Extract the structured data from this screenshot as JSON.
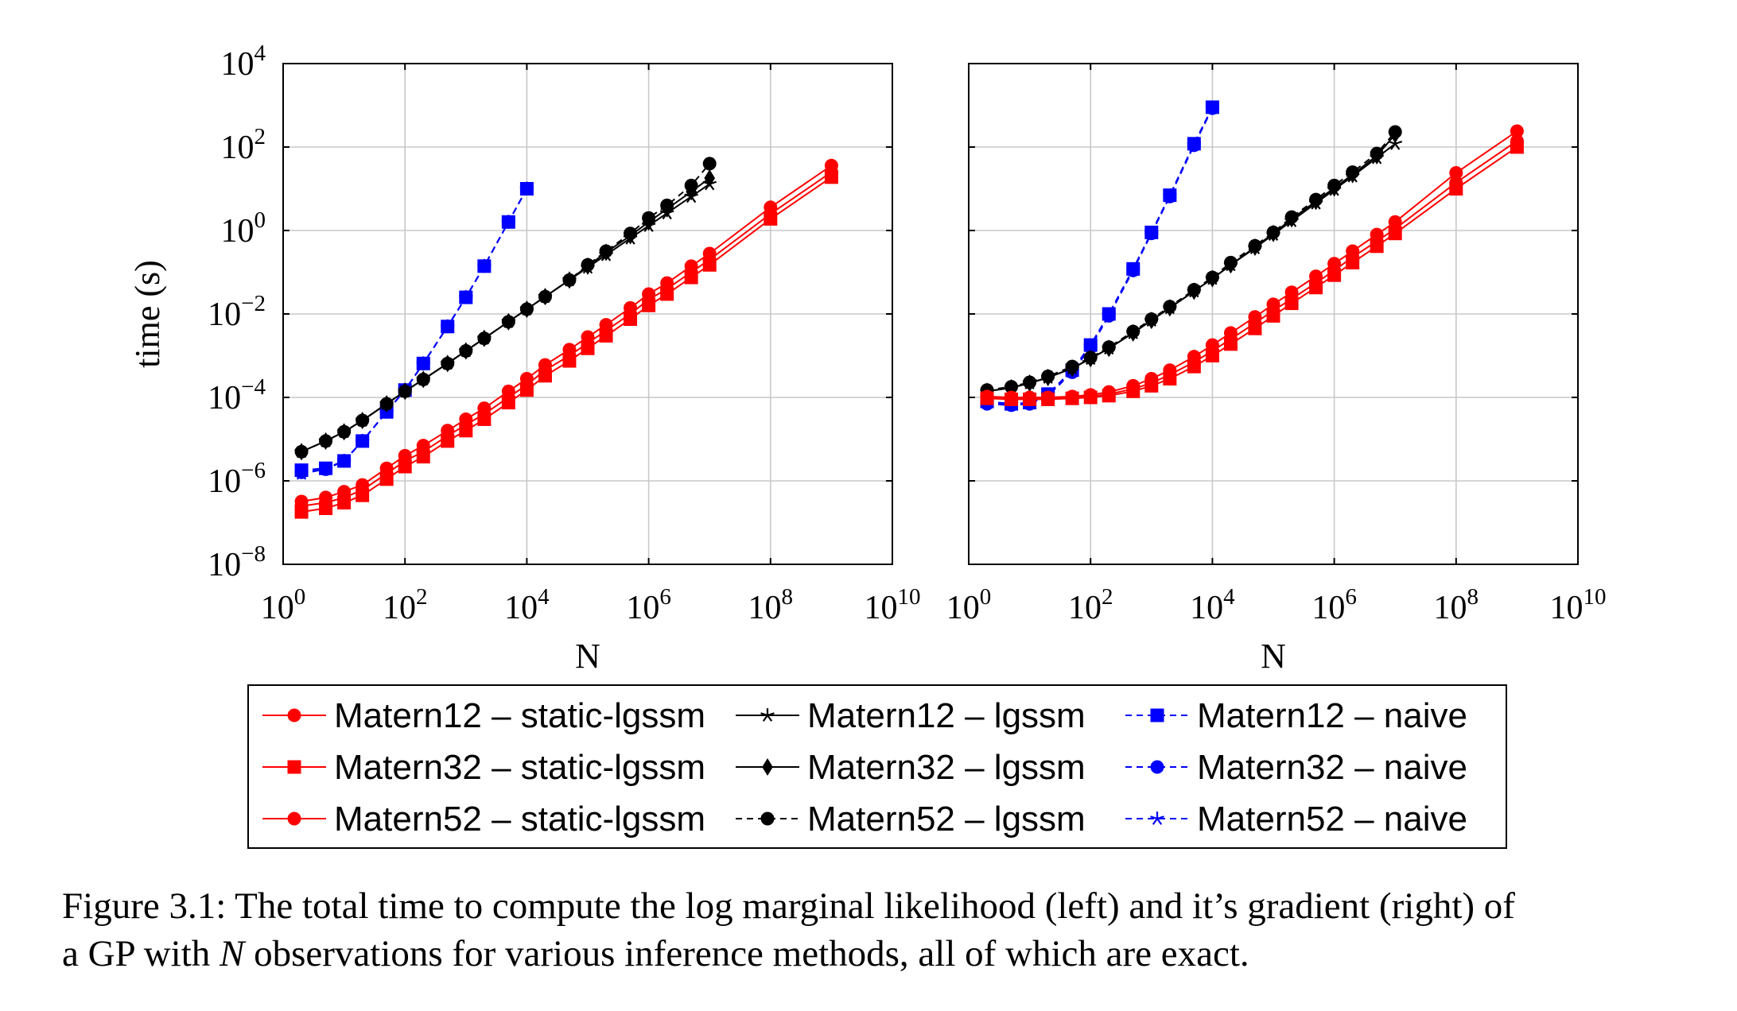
{
  "chart_data": [
    {
      "type": "scatter",
      "panel": "left",
      "xlabel": "N",
      "ylabel": "time (s)",
      "xscale": "log",
      "yscale": "log",
      "xlim": [
        1,
        10000000000
      ],
      "ylim": [
        1e-08,
        10000
      ],
      "xticks": [
        "10^0",
        "10^2",
        "10^4",
        "10^6",
        "10^8",
        "10^10"
      ],
      "yticks": [
        "10^-8",
        "10^-6",
        "10^-4",
        "10^-2",
        "10^0",
        "10^2",
        "10^4"
      ],
      "grid": true,
      "series": [
        {
          "name": "Matern12 – static-lgssm",
          "x": [
            2,
            5,
            10,
            20,
            50,
            100,
            200,
            500,
            1000,
            2000,
            5000,
            10000,
            20000,
            50000,
            100000,
            200000,
            500000,
            1000000,
            2000000,
            5000000,
            10000000,
            100000000,
            1000000000
          ],
          "y": [
            2.5e-07,
            3e-07,
            4e-07,
            6e-07,
            1.5e-06,
            3e-06,
            5e-06,
            1.2e-05,
            2.2e-05,
            4e-05,
            0.0001,
            0.0002,
            0.00045,
            0.001,
            0.002,
            0.004,
            0.01,
            0.022,
            0.04,
            0.1,
            0.2,
            2.5,
            25
          ]
        },
        {
          "name": "Matern32 – static-lgssm",
          "x": [
            2,
            5,
            10,
            20,
            50,
            100,
            200,
            500,
            1000,
            2000,
            5000,
            10000,
            20000,
            50000,
            100000,
            200000,
            500000,
            1000000,
            2000000,
            5000000,
            10000000,
            100000000,
            1000000000
          ],
          "y": [
            1.8e-07,
            2.2e-07,
            3e-07,
            4.5e-07,
            1.1e-06,
            2.2e-06,
            3.8e-06,
            9e-06,
            1.6e-05,
            3e-05,
            7.5e-05,
            0.00015,
            0.00033,
            0.00075,
            0.0015,
            0.003,
            0.0075,
            0.016,
            0.03,
            0.075,
            0.15,
            1.9,
            19
          ]
        },
        {
          "name": "Matern52 – static-lgssm",
          "x": [
            2,
            5,
            10,
            20,
            50,
            100,
            200,
            500,
            1000,
            2000,
            5000,
            10000,
            20000,
            50000,
            100000,
            200000,
            500000,
            1000000,
            2000000,
            5000000,
            10000000,
            100000000,
            1000000000
          ],
          "y": [
            3.2e-07,
            4e-07,
            5.5e-07,
            8e-07,
            2e-06,
            4e-06,
            7e-06,
            1.6e-05,
            3e-05,
            5.5e-05,
            0.00014,
            0.00028,
            0.0006,
            0.0014,
            0.0028,
            0.0055,
            0.014,
            0.03,
            0.055,
            0.14,
            0.28,
            3.6,
            36
          ]
        },
        {
          "name": "Matern12 – lgssm",
          "x": [
            2,
            5,
            10,
            20,
            50,
            100,
            200,
            500,
            1000,
            2000,
            5000,
            10000,
            20000,
            50000,
            100000,
            200000,
            500000,
            1000000,
            2000000,
            5000000,
            10000000
          ],
          "y": [
            5e-06,
            9e-06,
            1.5e-05,
            2.8e-05,
            7e-05,
            0.00014,
            0.00027,
            0.00065,
            0.0013,
            0.0026,
            0.0065,
            0.013,
            0.026,
            0.065,
            0.13,
            0.26,
            0.65,
            1.3,
            2.6,
            6.5,
            13
          ]
        },
        {
          "name": "Matern32 – lgssm",
          "x": [
            2,
            5,
            10,
            20,
            50,
            100,
            200,
            500,
            1000,
            2000,
            5000,
            10000,
            20000,
            50000,
            100000,
            200000,
            500000,
            1000000,
            2000000,
            5000000,
            10000000
          ],
          "y": [
            5e-06,
            9e-06,
            1.5e-05,
            2.8e-05,
            7e-05,
            0.00014,
            0.00027,
            0.00065,
            0.0013,
            0.0026,
            0.0065,
            0.013,
            0.026,
            0.065,
            0.14,
            0.3,
            0.75,
            1.6,
            3.3,
            8.5,
            18
          ]
        },
        {
          "name": "Matern52 – lgssm",
          "x": [
            2,
            5,
            10,
            20,
            50,
            100,
            200,
            500,
            1000,
            2000,
            5000,
            10000,
            20000,
            50000,
            100000,
            200000,
            500000,
            1000000,
            2000000,
            5000000,
            10000000
          ],
          "y": [
            5e-06,
            9e-06,
            1.5e-05,
            2.8e-05,
            7e-05,
            0.00014,
            0.00027,
            0.00065,
            0.0013,
            0.0026,
            0.0065,
            0.013,
            0.026,
            0.065,
            0.15,
            0.32,
            0.85,
            2,
            4,
            12,
            40
          ]
        },
        {
          "name": "Matern12 – naive",
          "x": [
            2,
            5,
            10,
            20,
            50,
            100,
            200,
            500,
            1000,
            2000,
            5000,
            10000
          ],
          "y": [
            1.8e-06,
            2e-06,
            3e-06,
            9e-06,
            4.5e-05,
            0.00015,
            0.00065,
            0.005,
            0.025,
            0.14,
            1.6,
            10
          ]
        },
        {
          "name": "Matern32 – naive",
          "x": [
            2,
            5,
            10,
            20,
            50,
            100,
            200,
            500,
            1000,
            2000,
            5000,
            10000
          ],
          "y": [
            1.6e-06,
            1.9e-06,
            3e-06,
            9e-06,
            4.5e-05,
            0.00015,
            0.00065,
            0.005,
            0.025,
            0.14,
            1.6,
            10
          ]
        },
        {
          "name": "Matern52 – naive",
          "x": [
            2,
            5,
            10,
            20,
            50,
            100,
            200,
            500,
            1000,
            2000,
            5000,
            10000
          ],
          "y": [
            1.5e-06,
            1.9e-06,
            3e-06,
            9e-06,
            4.5e-05,
            0.00015,
            0.00065,
            0.005,
            0.025,
            0.14,
            1.6,
            10
          ]
        }
      ]
    },
    {
      "type": "scatter",
      "panel": "right",
      "xlabel": "N",
      "ylabel": "",
      "xscale": "log",
      "yscale": "log",
      "xlim": [
        1,
        10000000000
      ],
      "ylim": [
        1e-08,
        10000
      ],
      "xticks": [
        "10^0",
        "10^2",
        "10^4",
        "10^6",
        "10^8",
        "10^10"
      ],
      "yticks": [],
      "grid": true,
      "series": [
        {
          "name": "Matern12 – static-lgssm",
          "x": [
            2,
            5,
            10,
            20,
            50,
            100,
            200,
            500,
            1000,
            2000,
            5000,
            10000,
            20000,
            50000,
            100000,
            200000,
            500000,
            1000000,
            2000000,
            5000000,
            10000000,
            100000000,
            1000000000
          ],
          "y": [
            0.0001,
            9.5e-05,
            9.5e-05,
            9.5e-05,
            0.0001,
            0.000105,
            0.00012,
            0.00016,
            0.00022,
            0.00035,
            0.0007,
            0.0013,
            0.0025,
            0.006,
            0.012,
            0.023,
            0.055,
            0.11,
            0.23,
            0.55,
            1.1,
            14,
            140
          ]
        },
        {
          "name": "Matern32 – static-lgssm",
          "x": [
            2,
            5,
            10,
            20,
            50,
            100,
            200,
            500,
            1000,
            2000,
            5000,
            10000,
            20000,
            50000,
            100000,
            200000,
            500000,
            1000000,
            2000000,
            5000000,
            10000000,
            100000000,
            1000000000
          ],
          "y": [
            9.5e-05,
            9e-05,
            9e-05,
            9e-05,
            9.5e-05,
            0.0001,
            0.00011,
            0.00014,
            0.00019,
            0.00028,
            0.00055,
            0.001,
            0.0019,
            0.0045,
            0.009,
            0.018,
            0.043,
            0.085,
            0.17,
            0.42,
            0.85,
            10,
            100
          ]
        },
        {
          "name": "Matern52 – static-lgssm",
          "x": [
            2,
            5,
            10,
            20,
            50,
            100,
            200,
            500,
            1000,
            2000,
            5000,
            10000,
            20000,
            50000,
            100000,
            200000,
            500000,
            1000000,
            2000000,
            5000000,
            10000000,
            100000000,
            1000000000
          ],
          "y": [
            0.000105,
            0.0001,
            0.0001,
            0.0001,
            0.000105,
            0.000115,
            0.000135,
            0.00019,
            0.00028,
            0.00045,
            0.00095,
            0.0018,
            0.0035,
            0.0085,
            0.017,
            0.033,
            0.08,
            0.16,
            0.32,
            0.8,
            1.6,
            24,
            240
          ]
        },
        {
          "name": "Matern12 – lgssm",
          "x": [
            2,
            5,
            10,
            20,
            50,
            100,
            200,
            500,
            1000,
            2000,
            5000,
            10000,
            20000,
            50000,
            100000,
            200000,
            500000,
            1000000,
            2000000,
            5000000,
            10000000
          ],
          "y": [
            0.00014,
            0.00017,
            0.00022,
            0.0003,
            0.0005,
            0.00085,
            0.0015,
            0.0035,
            0.007,
            0.014,
            0.035,
            0.07,
            0.15,
            0.38,
            0.8,
            1.7,
            4.5,
            9.5,
            20,
            55,
            120
          ]
        },
        {
          "name": "Matern32 – lgssm",
          "x": [
            2,
            5,
            10,
            20,
            50,
            100,
            200,
            500,
            1000,
            2000,
            5000,
            10000,
            20000,
            50000,
            100000,
            200000,
            500000,
            1000000,
            2000000,
            5000000,
            10000000
          ],
          "y": [
            0.00014,
            0.00017,
            0.00022,
            0.0003,
            0.0005,
            0.00085,
            0.0015,
            0.0035,
            0.007,
            0.014,
            0.035,
            0.07,
            0.15,
            0.4,
            0.85,
            1.9,
            5,
            10.5,
            22,
            62,
            200
          ]
        },
        {
          "name": "Matern52 – lgssm",
          "x": [
            2,
            5,
            10,
            20,
            50,
            100,
            200,
            500,
            1000,
            2000,
            5000,
            10000,
            20000,
            50000,
            100000,
            200000,
            500000,
            1000000,
            2000000,
            5000000,
            10000000
          ],
          "y": [
            0.00015,
            0.00018,
            0.00023,
            0.00032,
            0.00055,
            0.0009,
            0.0016,
            0.0038,
            0.0075,
            0.015,
            0.038,
            0.075,
            0.17,
            0.43,
            0.9,
            2.1,
            5.5,
            12,
            25,
            70,
            230
          ]
        },
        {
          "name": "Matern12 – naive",
          "x": [
            2,
            5,
            10,
            20,
            50,
            100,
            200,
            500,
            1000,
            2000,
            5000,
            10000
          ],
          "y": [
            8e-05,
            7e-05,
            7.5e-05,
            0.00012,
            0.00045,
            0.0018,
            0.01,
            0.12,
            0.9,
            7,
            120,
            900
          ]
        },
        {
          "name": "Matern32 – naive",
          "x": [
            2,
            5,
            10,
            20,
            50,
            100,
            200,
            500,
            1000,
            2000,
            5000,
            10000
          ],
          "y": [
            7e-05,
            6.5e-05,
            7e-05,
            0.00011,
            0.0004,
            0.0016,
            0.009,
            0.11,
            0.85,
            6.5,
            110,
            850
          ]
        },
        {
          "name": "Matern52 – naive",
          "x": [
            2,
            5,
            10,
            20,
            50,
            100,
            200,
            500,
            1000,
            2000,
            5000,
            10000
          ],
          "y": [
            7.5e-05,
            6.8e-05,
            7.2e-05,
            0.000115,
            0.00042,
            0.0017,
            0.0095,
            0.115,
            0.88,
            6.8,
            115,
            880
          ]
        }
      ]
    }
  ],
  "legend": {
    "placement": "bottom-center",
    "entries": [
      {
        "label": "Matern12 – static-lgssm",
        "color": "#ff0000",
        "marker": "circle",
        "dash": "solid"
      },
      {
        "label": "Matern12 – lgssm",
        "color": "#000000",
        "marker": "star",
        "dash": "solid"
      },
      {
        "label": "Matern12 – naive",
        "color": "#0000ff",
        "marker": "square",
        "dash": "dashed"
      },
      {
        "label": "Matern32 – static-lgssm",
        "color": "#ff0000",
        "marker": "square",
        "dash": "solid"
      },
      {
        "label": "Matern32 – lgssm",
        "color": "#000000",
        "marker": "diamond",
        "dash": "solid"
      },
      {
        "label": "Matern32 – naive",
        "color": "#0000ff",
        "marker": "circle",
        "dash": "dashed"
      },
      {
        "label": "Matern52 – static-lgssm",
        "color": "#ff0000",
        "marker": "circle",
        "dash": "solid"
      },
      {
        "label": "Matern52 – lgssm",
        "color": "#000000",
        "marker": "circle",
        "dash": "dashed"
      },
      {
        "label": "Matern52 – naive",
        "color": "#0000ff",
        "marker": "star",
        "dash": "dashed"
      }
    ]
  },
  "caption": {
    "line1": "Figure 3.1: The total time to compute the log marginal likelihood (left) and it’s gradient (right) of",
    "line2_a": "a GP with ",
    "line2_var": "N",
    "line2_b": " observations for various inference methods, all of which are exact."
  }
}
